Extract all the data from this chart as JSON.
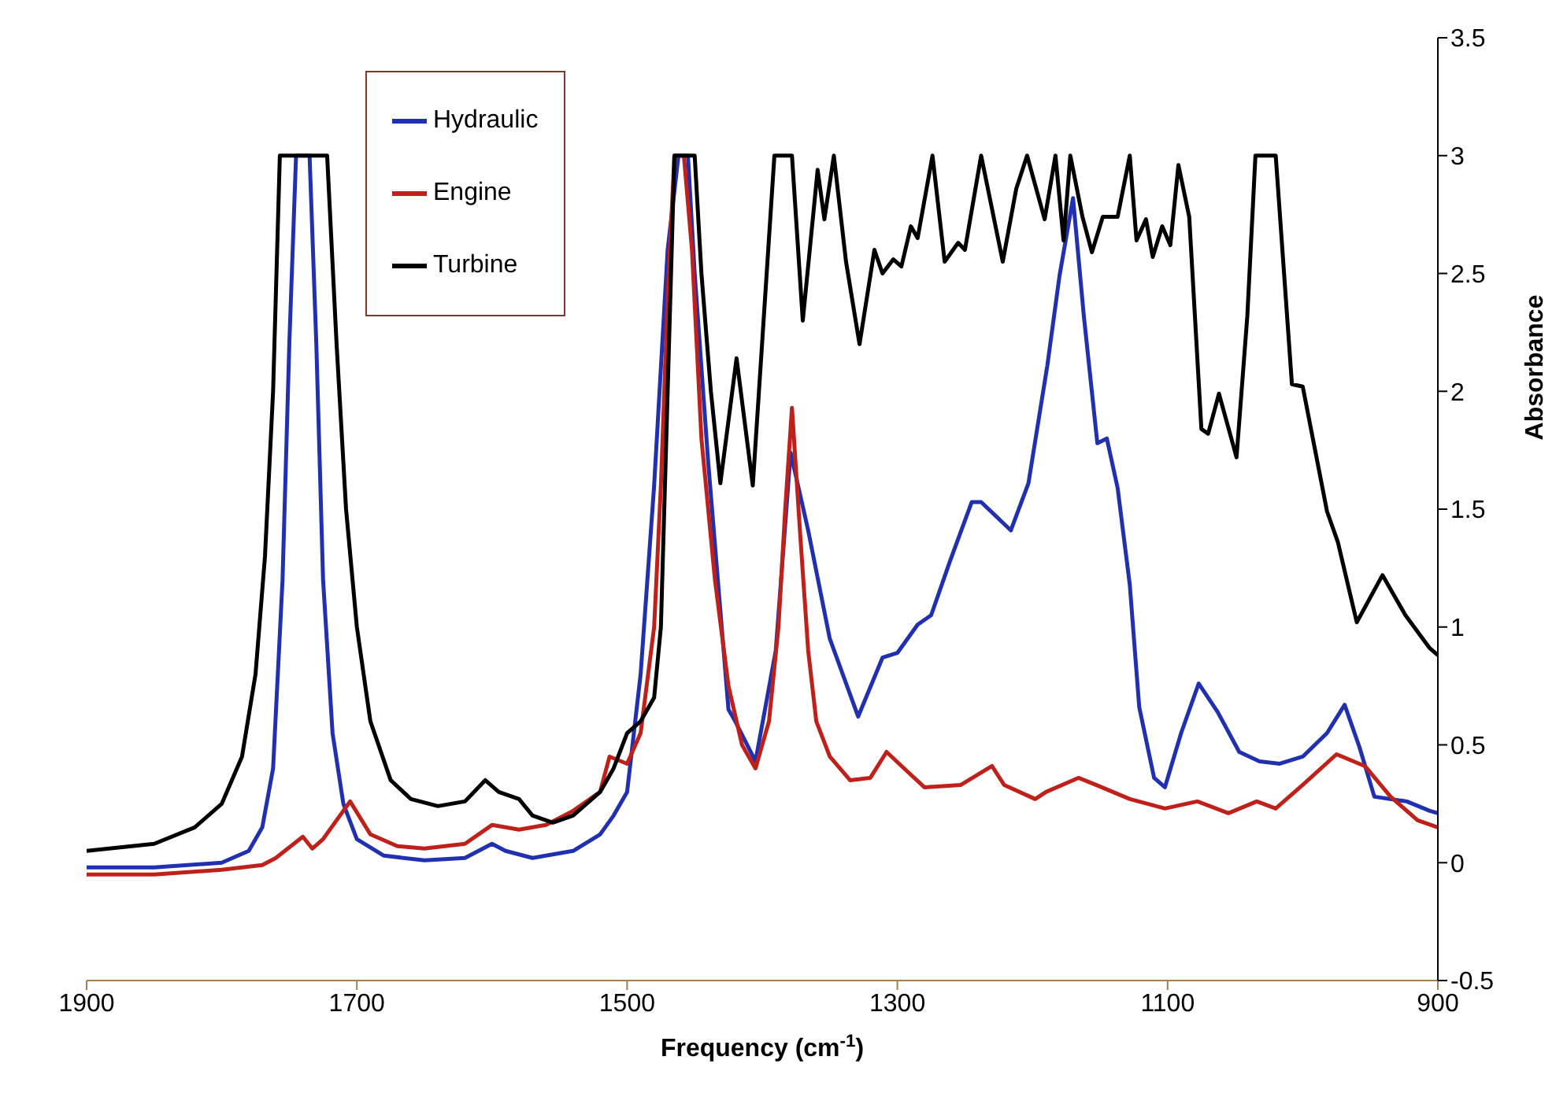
{
  "chart_data": {
    "type": "line",
    "xlabel": "Frequency (cm$^{-1}$)",
    "ylabel": "Absorbance",
    "xlim": [
      1900,
      900
    ],
    "xticks": [
      1900,
      1700,
      1500,
      1300,
      1100,
      900
    ],
    "ylim": [
      -0.5,
      3.5
    ],
    "yticks": [
      -0.5,
      0,
      0.5,
      1,
      1.5,
      2,
      2.5,
      3,
      3.5
    ],
    "grid": false,
    "legend": "top left",
    "marker": "none",
    "line_style": "solid",
    "series": [
      {
        "name": "Hydraulic",
        "color": "#2030b0",
        "x": [
          1900,
          1850,
          1800,
          1780,
          1770,
          1762,
          1755,
          1750,
          1745,
          1735,
          1730,
          1725,
          1718,
          1710,
          1700,
          1680,
          1650,
          1620,
          1600,
          1590,
          1570,
          1540,
          1520,
          1510,
          1500,
          1490,
          1480,
          1470,
          1462,
          1455,
          1450,
          1440,
          1430,
          1425,
          1420,
          1405,
          1390,
          1379,
          1366,
          1350,
          1329,
          1311,
          1300,
          1285,
          1275,
          1261,
          1245,
          1238,
          1216,
          1203,
          1189,
          1180,
          1170,
          1162,
          1152,
          1145,
          1137,
          1128,
          1121,
          1110,
          1102,
          1090,
          1077,
          1063,
          1047,
          1032,
          1017,
          1000,
          982,
          969,
          958,
          947,
          923,
          906,
          900
        ],
        "values": [
          -0.02,
          -0.02,
          0.0,
          0.05,
          0.15,
          0.4,
          1.2,
          2.2,
          3.0,
          3.0,
          2.2,
          1.2,
          0.55,
          0.25,
          0.1,
          0.03,
          0.01,
          0.02,
          0.08,
          0.05,
          0.02,
          0.05,
          0.12,
          0.2,
          0.3,
          0.8,
          1.6,
          2.6,
          3.0,
          3.0,
          2.5,
          1.7,
          1.0,
          0.65,
          0.6,
          0.43,
          0.9,
          1.74,
          1.41,
          0.95,
          0.62,
          0.87,
          0.89,
          1.01,
          1.05,
          1.28,
          1.53,
          1.53,
          1.41,
          1.61,
          2.11,
          2.49,
          2.82,
          2.32,
          1.78,
          1.8,
          1.59,
          1.18,
          0.66,
          0.36,
          0.32,
          0.55,
          0.76,
          0.64,
          0.47,
          0.43,
          0.42,
          0.45,
          0.55,
          0.67,
          0.49,
          0.28,
          0.26,
          0.22,
          0.21
        ]
      },
      {
        "name": "Engine",
        "color": "#c0201a",
        "x": [
          1900,
          1850,
          1800,
          1770,
          1760,
          1740,
          1733,
          1725,
          1705,
          1690,
          1670,
          1650,
          1620,
          1600,
          1580,
          1560,
          1540,
          1520,
          1513,
          1500,
          1490,
          1480,
          1475,
          1470,
          1465,
          1458,
          1452,
          1445,
          1435,
          1425,
          1415,
          1405,
          1395,
          1388,
          1383,
          1378,
          1372,
          1366,
          1360,
          1350,
          1335,
          1320,
          1308,
          1295,
          1280,
          1253,
          1230,
          1221,
          1198,
          1190,
          1166,
          1153,
          1128,
          1102,
          1078,
          1055,
          1034,
          1020,
          1000,
          975,
          954,
          935,
          915,
          900
        ],
        "values": [
          -0.05,
          -0.05,
          -0.03,
          -0.01,
          0.02,
          0.11,
          0.06,
          0.1,
          0.26,
          0.12,
          0.07,
          0.06,
          0.08,
          0.16,
          0.14,
          0.16,
          0.22,
          0.3,
          0.45,
          0.42,
          0.55,
          1.0,
          1.6,
          2.4,
          3.0,
          3.0,
          2.6,
          1.8,
          1.2,
          0.75,
          0.5,
          0.4,
          0.6,
          1.0,
          1.5,
          1.93,
          1.4,
          0.9,
          0.6,
          0.45,
          0.35,
          0.36,
          0.47,
          0.4,
          0.32,
          0.33,
          0.41,
          0.33,
          0.27,
          0.3,
          0.36,
          0.33,
          0.27,
          0.23,
          0.26,
          0.21,
          0.26,
          0.23,
          0.33,
          0.46,
          0.41,
          0.28,
          0.18,
          0.15
        ]
      },
      {
        "name": "Turbine",
        "color": "#000000",
        "x": [
          1900,
          1850,
          1820,
          1800,
          1785,
          1775,
          1768,
          1762,
          1757,
          1722,
          1715,
          1708,
          1700,
          1690,
          1675,
          1660,
          1640,
          1620,
          1605,
          1595,
          1580,
          1570,
          1555,
          1540,
          1520,
          1510,
          1500,
          1490,
          1480,
          1475,
          1470,
          1465,
          1450,
          1445,
          1438,
          1431,
          1419,
          1407,
          1391,
          1378,
          1370,
          1359,
          1354,
          1347,
          1338,
          1328,
          1317,
          1311,
          1303,
          1297,
          1290,
          1285,
          1274,
          1265,
          1255,
          1250,
          1238,
          1222,
          1212,
          1204,
          1191,
          1183,
          1177,
          1172,
          1163,
          1156,
          1148,
          1137,
          1128,
          1123,
          1116,
          1111,
          1104,
          1098,
          1092,
          1084,
          1075,
          1070,
          1062,
          1049,
          1041,
          1035,
          1020,
          1008,
          1000,
          982,
          974,
          960,
          941,
          924,
          906,
          900
        ],
        "values": [
          0.05,
          0.08,
          0.15,
          0.25,
          0.45,
          0.8,
          1.3,
          2.0,
          3.0,
          3.0,
          2.2,
          1.5,
          1.0,
          0.6,
          0.35,
          0.27,
          0.24,
          0.26,
          0.35,
          0.3,
          0.27,
          0.2,
          0.17,
          0.2,
          0.3,
          0.4,
          0.55,
          0.6,
          0.7,
          1.0,
          2.0,
          3.0,
          3.0,
          2.5,
          2.0,
          1.61,
          2.14,
          1.6,
          3.0,
          3.0,
          2.3,
          2.94,
          2.73,
          3.0,
          2.55,
          2.2,
          2.6,
          2.5,
          2.56,
          2.53,
          2.7,
          2.65,
          3.0,
          2.55,
          2.63,
          2.6,
          3.0,
          2.55,
          2.86,
          3.0,
          2.73,
          3.0,
          2.64,
          3.0,
          2.74,
          2.59,
          2.74,
          2.74,
          3.0,
          2.64,
          2.73,
          2.57,
          2.7,
          2.62,
          2.96,
          2.74,
          1.84,
          1.82,
          1.99,
          1.72,
          2.32,
          3.0,
          3.0,
          2.03,
          2.02,
          1.49,
          1.36,
          1.02,
          1.22,
          1.05,
          0.91,
          0.88
        ]
      }
    ]
  }
}
